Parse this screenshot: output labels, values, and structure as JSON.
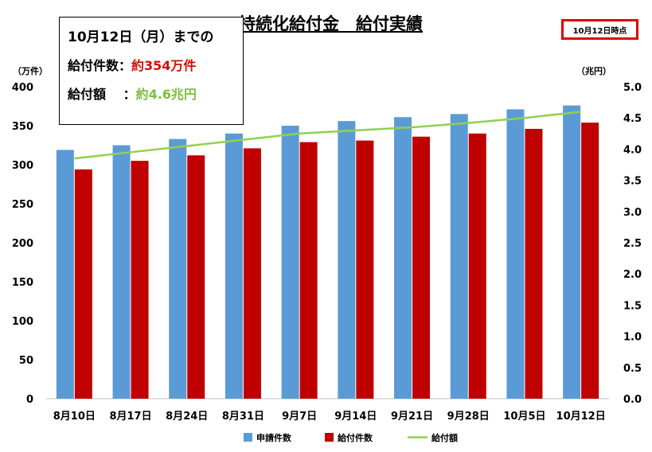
{
  "chart_data": {
    "type": "bar",
    "title": "持続化給付金　給付実績",
    "categories": [
      "8月10日",
      "8月17日",
      "8月24日",
      "8月31日",
      "9月7日",
      "9月14日",
      "9月21日",
      "9月28日",
      "10月5日",
      "10月12日"
    ],
    "series": [
      {
        "name": "申請件数",
        "type": "bar",
        "axis": "left",
        "color": "#5b9bd5",
        "values": [
          319,
          325,
          333,
          340,
          350,
          356,
          361,
          365,
          371,
          376
        ]
      },
      {
        "name": "給付件数",
        "type": "bar",
        "axis": "left",
        "color": "#c00000",
        "values": [
          294,
          305,
          312,
          321,
          329,
          331,
          336,
          340,
          346,
          354
        ]
      },
      {
        "name": "給付額",
        "type": "line",
        "axis": "right",
        "color": "#92d050",
        "values": [
          3.85,
          3.95,
          4.05,
          4.15,
          4.25,
          4.3,
          4.35,
          4.42,
          4.5,
          4.6
        ]
      }
    ],
    "ylabel": "（万件）",
    "y2label": "（兆円）",
    "ylim": [
      0,
      400
    ],
    "y2lim": [
      0,
      5
    ],
    "yticks": [
      "0",
      "50",
      "100",
      "150",
      "200",
      "250",
      "300",
      "350",
      "400"
    ],
    "y2ticks": [
      "0.0",
      "0.5",
      "1.0",
      "1.5",
      "2.0",
      "2.5",
      "3.0",
      "3.5",
      "4.0",
      "4.5",
      "5.0"
    ],
    "grid": false,
    "legend_position": "bottom"
  },
  "as_of_label": "10月12日時点",
  "summary": {
    "heading": "10月12日（月）までの",
    "count_label": "給付件数：",
    "count_value": "約354万件",
    "amount_label": "給付額　 ：",
    "amount_value": "約4.6兆円"
  }
}
